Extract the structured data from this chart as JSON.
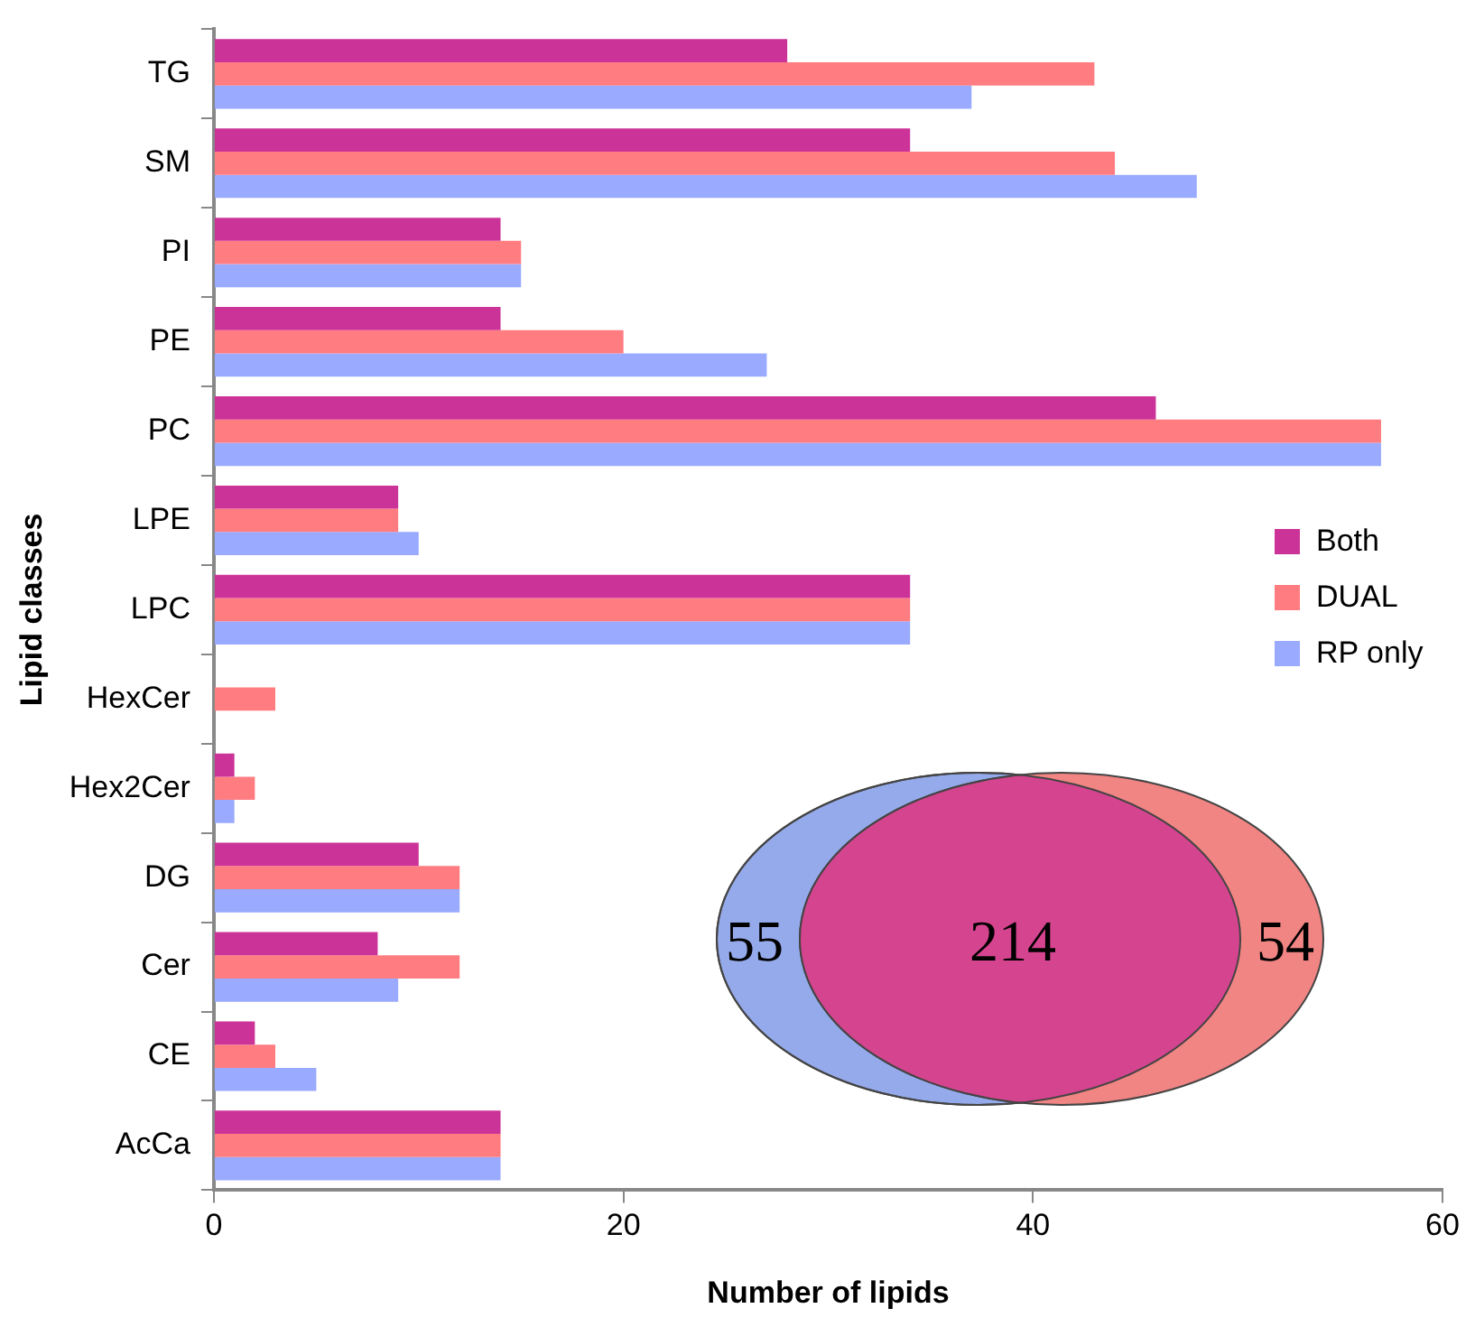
{
  "chart_data": {
    "type": "bar",
    "orientation": "horizontal",
    "xlabel": "Number of lipids",
    "ylabel": "Lipid classes",
    "categories": [
      "TG",
      "SM",
      "PI",
      "PE",
      "PC",
      "LPE",
      "LPC",
      "HexCer",
      "Hex2Cer",
      "DG",
      "Cer",
      "CE",
      "AcCa"
    ],
    "series": [
      {
        "name": "Both",
        "color": "#cc3399",
        "values": [
          28,
          34,
          14,
          14,
          46,
          9,
          34,
          0,
          1,
          10,
          8,
          2,
          14
        ]
      },
      {
        "name": "DUAL",
        "color": "#ff7c80",
        "values": [
          43,
          44,
          15,
          20,
          57,
          9,
          34,
          3,
          2,
          12,
          12,
          3,
          14
        ]
      },
      {
        "name": "RP only",
        "color": "#99aaff",
        "values": [
          37,
          48,
          15,
          27,
          57,
          10,
          34,
          0,
          1,
          12,
          9,
          5,
          14
        ]
      }
    ],
    "xlim": [
      0,
      60
    ],
    "xticks": [
      0,
      20,
      40,
      60
    ],
    "grid": false,
    "legend": "right",
    "annotations": [
      "55",
      "214",
      "54"
    ]
  }
}
